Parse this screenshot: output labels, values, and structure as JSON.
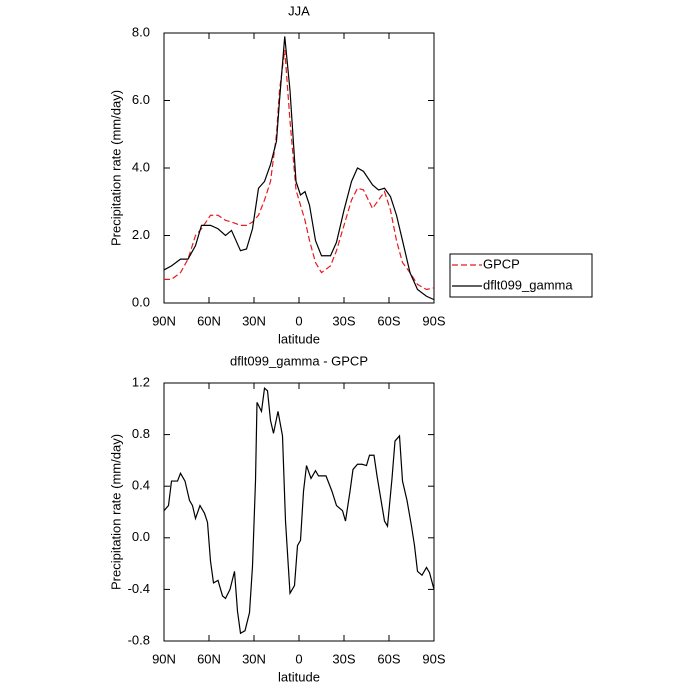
{
  "chart_data": [
    {
      "type": "line",
      "title": "JJA",
      "x_label": "latitude",
      "y_label": "Precipitation rate (mm/day)",
      "x": [
        90,
        85,
        79,
        74,
        69,
        65,
        59,
        54,
        49,
        45,
        39,
        35,
        31,
        27,
        23,
        19,
        15,
        13,
        9.5,
        6,
        2,
        -1,
        -4,
        -7,
        -11,
        -15,
        -21,
        -25,
        -30,
        -35,
        -39,
        -43,
        -49,
        -53,
        -57,
        -61,
        -65,
        -69,
        -74,
        -79,
        -85,
        -90
      ],
      "series": [
        {
          "name": "GPCP",
          "color": "#e8191e",
          "linestyle": "dashed",
          "values": [
            0.7,
            0.7,
            0.9,
            1.3,
            2.0,
            2.2,
            2.6,
            2.6,
            2.45,
            2.4,
            2.3,
            2.3,
            2.4,
            2.6,
            3.05,
            3.6,
            5.0,
            6.3,
            7.5,
            5.4,
            3.35,
            2.9,
            2.45,
            1.85,
            1.2,
            0.9,
            1.1,
            1.55,
            2.3,
            3.05,
            3.4,
            3.35,
            2.8,
            3.05,
            3.3,
            2.75,
            1.85,
            1.2,
            0.9,
            0.55,
            0.4,
            0.45
          ]
        },
        {
          "name": "dflt099_gamma",
          "color": "#000000",
          "linestyle": "solid",
          "values": [
            0.98,
            1.1,
            1.3,
            1.3,
            1.7,
            2.3,
            2.3,
            2.2,
            2.0,
            2.15,
            1.55,
            1.6,
            2.2,
            3.4,
            3.6,
            4.1,
            4.8,
            6.0,
            7.9,
            6.3,
            3.6,
            3.2,
            3.3,
            2.9,
            1.85,
            1.4,
            1.4,
            1.8,
            2.75,
            3.6,
            4.0,
            3.9,
            3.5,
            3.35,
            3.4,
            3.15,
            2.6,
            1.85,
            0.9,
            0.4,
            0.2,
            0.1
          ]
        }
      ],
      "xlim": [
        90,
        -90
      ],
      "xticks": [
        {
          "value": 90,
          "label": "90N"
        },
        {
          "value": 60,
          "label": "60N"
        },
        {
          "value": 30,
          "label": "30N"
        },
        0,
        {
          "value": -30,
          "label": "30S"
        },
        {
          "value": -60,
          "label": "60S"
        },
        {
          "value": -90,
          "label": "90S"
        }
      ],
      "ylim": [
        0,
        8
      ],
      "yticks": [
        {
          "value": 0,
          "label": "0.0"
        },
        {
          "value": 2,
          "label": "2.0"
        },
        {
          "value": 4,
          "label": "4.0"
        },
        {
          "value": 6,
          "label": "6.0"
        },
        {
          "value": 8,
          "label": "8.0"
        }
      ],
      "legend": "outside-right"
    },
    {
      "type": "line",
      "title": "dflt099_gamma - GPCP",
      "x_label": "latitude",
      "y_label": "Precipitation rate (mm/day)",
      "x": [
        90,
        87,
        85,
        81,
        79,
        76,
        73,
        71,
        69,
        66,
        63,
        61,
        59,
        57,
        54,
        51,
        49,
        46,
        43,
        41,
        39,
        36,
        33,
        31,
        29,
        28,
        25,
        23,
        21,
        19,
        17,
        14,
        11,
        9,
        6,
        3,
        1,
        -1,
        -3,
        -5,
        -8,
        -11,
        -13,
        -18,
        -22,
        -25,
        -29,
        -31,
        -34,
        -36,
        -39,
        -42,
        -45,
        -47,
        -50,
        -52,
        -55,
        -57,
        -59,
        -62,
        -64,
        -67,
        -69,
        -72,
        -75,
        -77,
        -79,
        -82,
        -85,
        -87,
        -90
      ],
      "values": [
        0.21,
        0.25,
        0.44,
        0.44,
        0.5,
        0.44,
        0.29,
        0.25,
        0.15,
        0.25,
        0.19,
        0.12,
        -0.18,
        -0.35,
        -0.33,
        -0.45,
        -0.47,
        -0.4,
        -0.26,
        -0.57,
        -0.74,
        -0.72,
        -0.58,
        -0.22,
        0.44,
        1.05,
        0.98,
        1.16,
        1.14,
        0.91,
        0.81,
        0.98,
        0.79,
        0.13,
        -0.43,
        -0.37,
        -0.06,
        -0.02,
        0.36,
        0.56,
        0.46,
        0.52,
        0.48,
        0.48,
        0.36,
        0.25,
        0.21,
        0.13,
        0.36,
        0.53,
        0.57,
        0.57,
        0.56,
        0.64,
        0.64,
        0.48,
        0.27,
        0.13,
        0.09,
        0.46,
        0.75,
        0.79,
        0.44,
        0.29,
        0.09,
        -0.06,
        -0.26,
        -0.29,
        -0.23,
        -0.27,
        -0.4
      ],
      "color": "#000000",
      "xlim": [
        90,
        -90
      ],
      "xticks": [
        {
          "value": 90,
          "label": "90N"
        },
        {
          "value": 60,
          "label": "60N"
        },
        {
          "value": 30,
          "label": "30N"
        },
        0,
        {
          "value": -30,
          "label": "30S"
        },
        {
          "value": -60,
          "label": "60S"
        },
        {
          "value": -90,
          "label": "90S"
        }
      ],
      "ylim": [
        -0.8,
        1.2
      ],
      "yticks": [
        -0.8,
        -0.4,
        {
          "value": 0,
          "label": "0.0"
        },
        0.4,
        0.8,
        1.2
      ]
    }
  ]
}
